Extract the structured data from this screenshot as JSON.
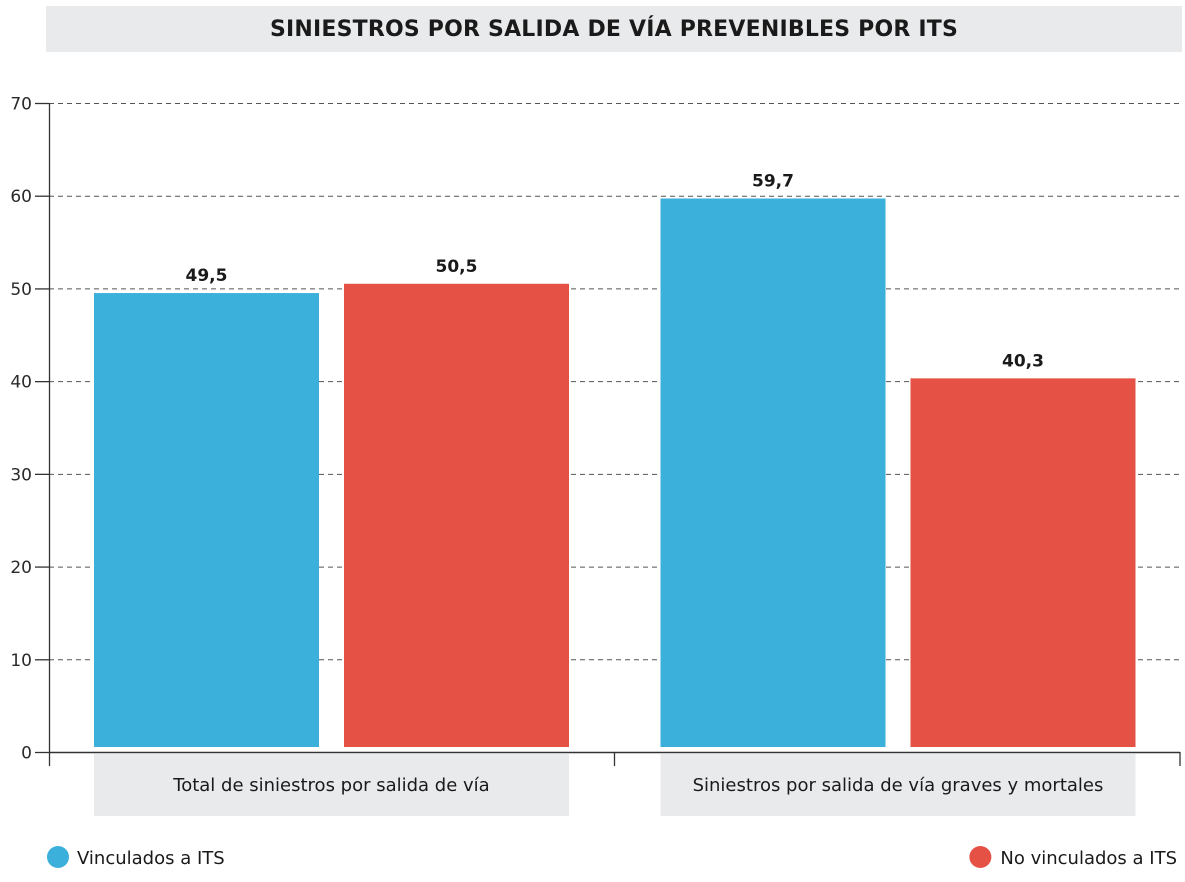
{
  "chart_data": {
    "type": "bar",
    "title": "SINIESTROS POR SALIDA DE VÍA PREVENIBLES POR ITS",
    "xlabel": "",
    "ylabel": "",
    "ylim": [
      0,
      70
    ],
    "yticks": [
      0,
      10,
      20,
      30,
      40,
      50,
      60,
      70
    ],
    "grid": true,
    "categories": [
      "Total de siniestros por salida de vía",
      "Siniestros por salida de vía graves y mortales"
    ],
    "series": [
      {
        "name": "Vinculados a ITS",
        "color": "#3ab0db",
        "values": [
          49.5,
          59.7
        ],
        "labels": [
          "49,5",
          "59,7"
        ]
      },
      {
        "name": "No vinculados a ITS",
        "color": "#e65146",
        "values": [
          50.5,
          40.3
        ],
        "labels": [
          "50,5",
          "40,3"
        ]
      }
    ],
    "legend": {
      "placement": "bottom",
      "items": [
        "Vinculados a ITS",
        "No vinculados a ITS"
      ]
    },
    "category_band_color": "#e9eaec"
  }
}
